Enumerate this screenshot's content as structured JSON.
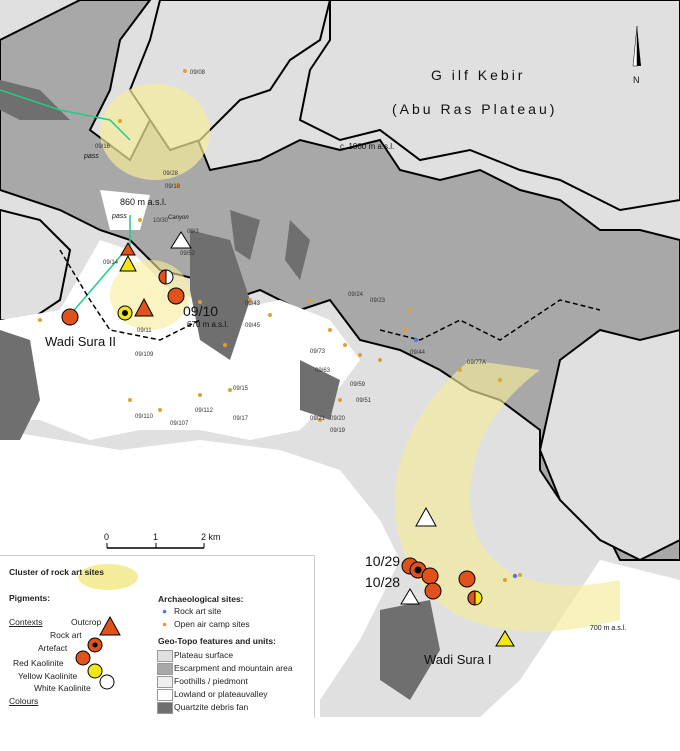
{
  "title": {
    "line1": "G ilf  Kebir",
    "line2": "(Abu Ras Plateau)"
  },
  "north_arrow": "N",
  "elevations": {
    "e1000": "c. 1000 m a.s.l.",
    "e860": "860  m a.s.l.",
    "e670": "670 m a.s.l.",
    "e700": "700 m a.s.l."
  },
  "places": {
    "pass1": "pass",
    "pass2": "pass",
    "canyon": "Canyon",
    "wadi_sura_ii": "Wadi Sura II",
    "wadi_sura_i": "Wadi Sura I"
  },
  "big_sites": {
    "s0910": "09/10",
    "s1029": "10/29",
    "s1028": "10/28"
  },
  "small_sites": [
    "09/08",
    "09/18",
    "09/28",
    "09/16",
    "10/30",
    "09/3",
    "09/14",
    "09/11",
    "09/109",
    "09/43",
    "09/45",
    "09/24",
    "09/23",
    "09/15",
    "09/17",
    "09/112",
    "09/110",
    "09/107",
    "09/73",
    "09/44",
    "09/59",
    "09/51",
    "09/20",
    "09/19",
    "09/21",
    "09/77A",
    "09/63",
    "09/52"
  ],
  "scale_bar": {
    "zero": "0",
    "one": "1",
    "two": "2 km"
  },
  "legend": {
    "cluster": "Cluster of rock art sites",
    "pigments": "Pigments:",
    "contexts": "Contexts",
    "outcrop": "Outcrop",
    "rock_art": "Rock art",
    "artefact": "Artefact",
    "red": "Red Kaolinite",
    "yellow": "Yellow Kaolinite",
    "white": "White Kaolinite",
    "colours": "Colours",
    "arch_title": "Archaeological sites:",
    "rock_art_site": "Rock art site",
    "camp_sites": "Open air camp sites",
    "geo_title": "Geo-Topo features and units:",
    "plateau": "Plateau surface",
    "escarpment": "Escarpment and mountain area",
    "foothills": "Foothills / piedmont",
    "lowland": "Lowland or plateauvalley",
    "debris": "Quartzite debris fan"
  },
  "colors": {
    "plateau": "#e0e0e0",
    "escarpment": "#a8a8a8",
    "debris": "#6f6f6f",
    "lowland": "#ffffff",
    "cluster": "#f5ec9a",
    "red": "#e0521c",
    "yellow": "#f2e616",
    "camp": "#e0a030",
    "rock_art_site": "#5577dd"
  }
}
